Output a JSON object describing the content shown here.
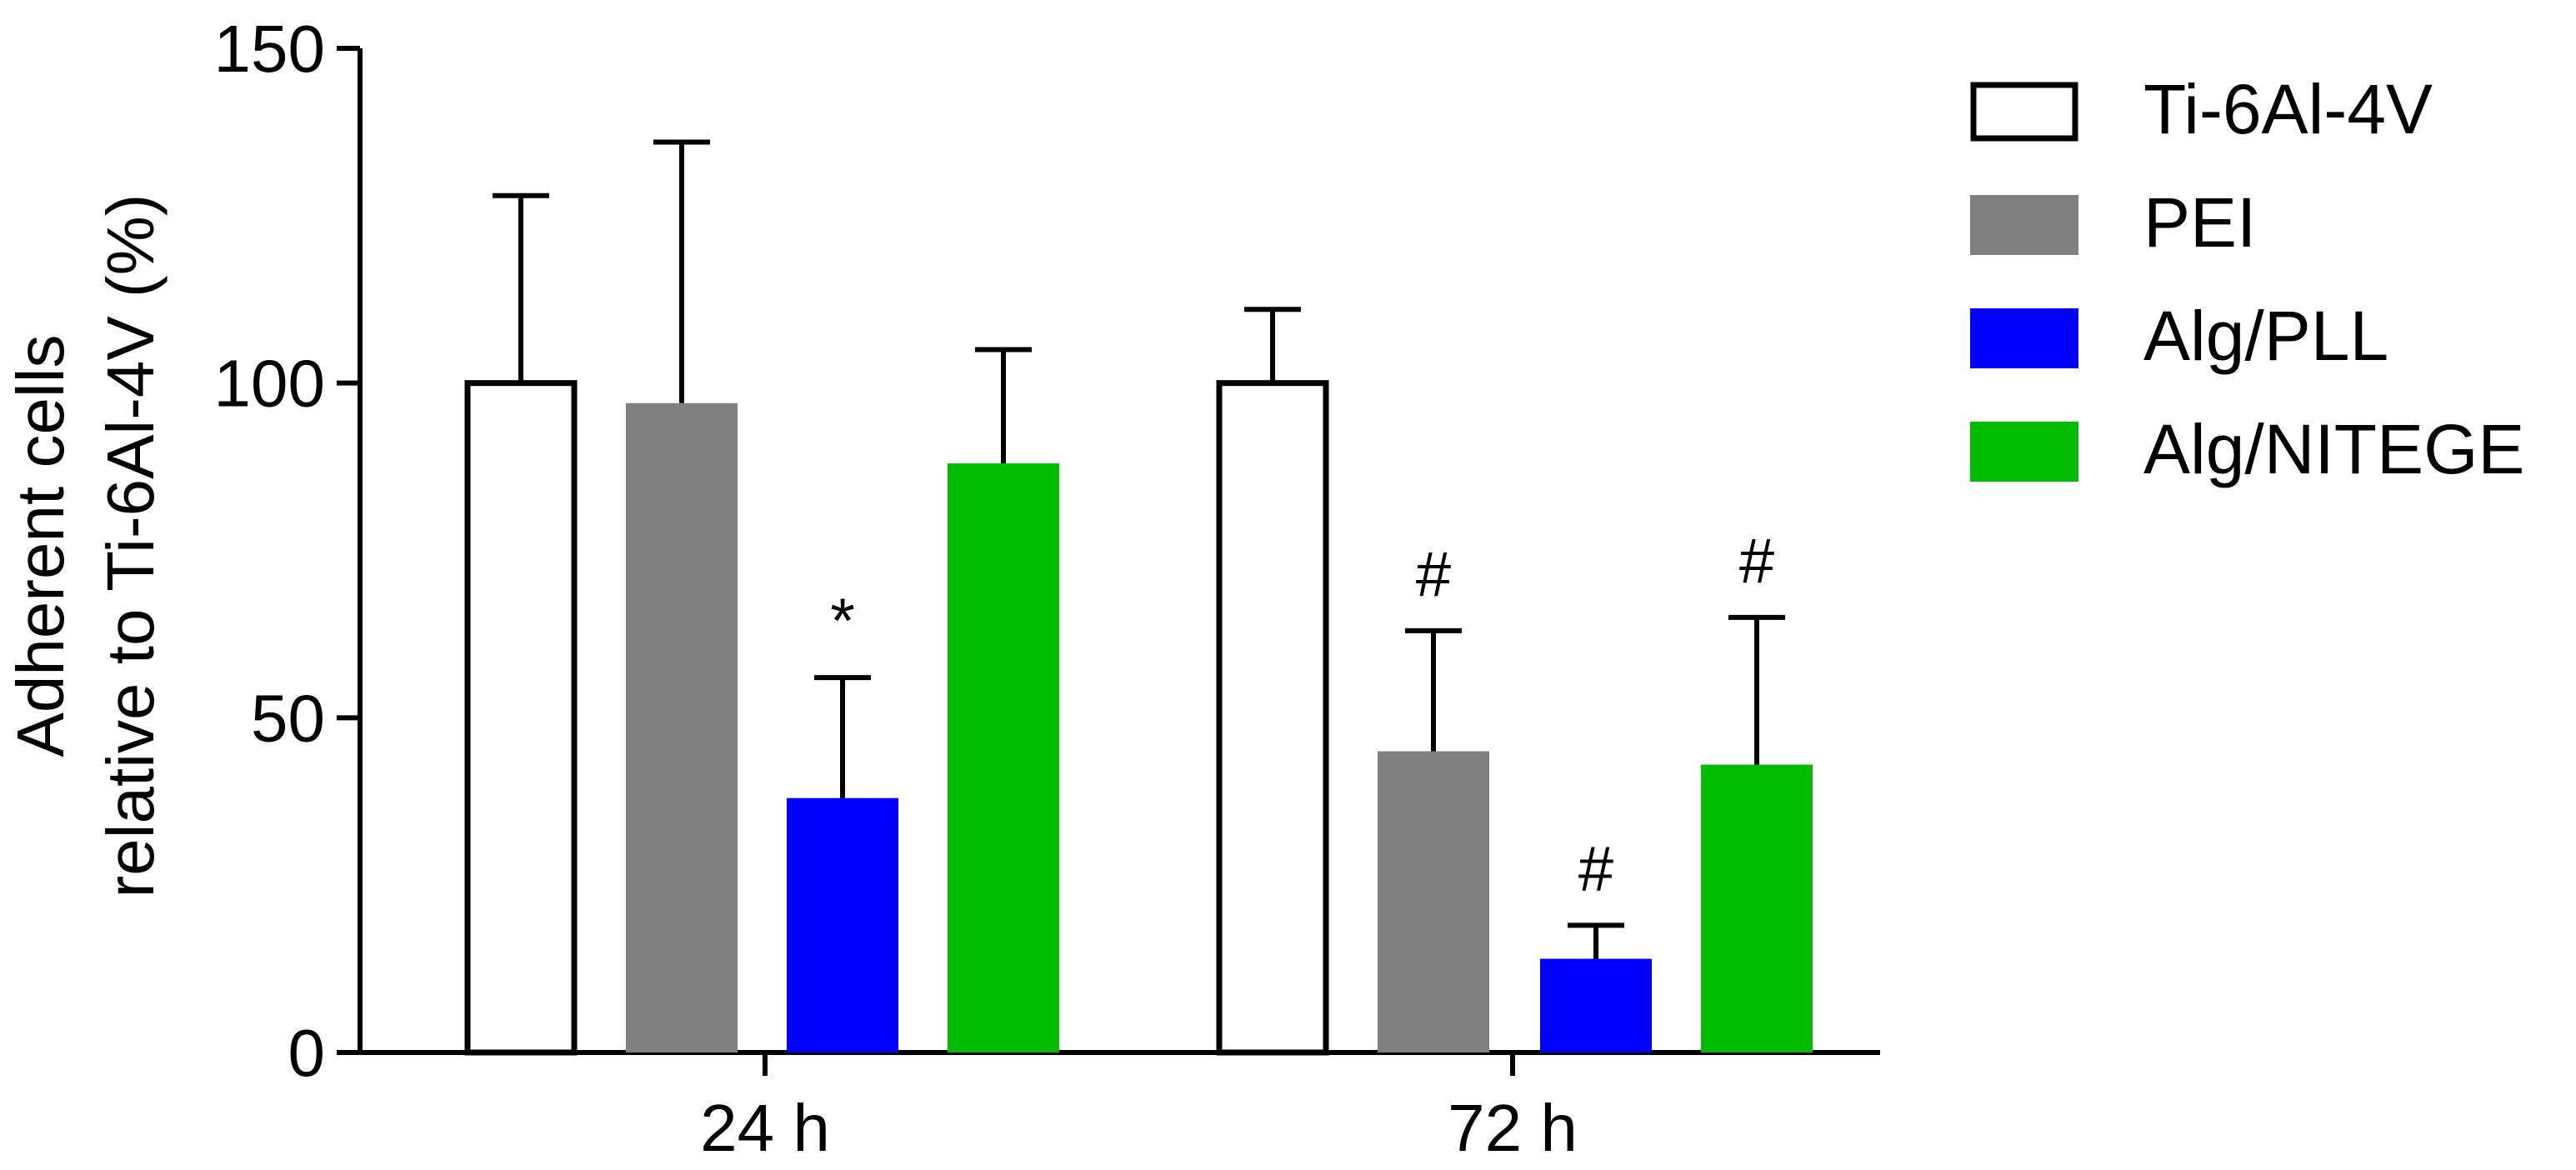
{
  "chart_data": {
    "type": "bar",
    "title": "",
    "xlabel": "",
    "ylabel_lines": [
      "Adherent cells",
      "relative to Ti-6Al-4V (%)"
    ],
    "ylim": [
      0,
      150
    ],
    "yticks": [
      0,
      50,
      100,
      150
    ],
    "categories": [
      "24 h",
      "72 h"
    ],
    "series": [
      {
        "name": "Ti-6Al-4V",
        "color": "#ffffff",
        "stroke": "#000000",
        "values": [
          100,
          100
        ],
        "errors": [
          28,
          11
        ],
        "annotations": [
          "",
          ""
        ]
      },
      {
        "name": "PEI",
        "color": "#808080",
        "stroke": "#808080",
        "values": [
          97,
          45
        ],
        "errors": [
          39,
          18
        ],
        "annotations": [
          "",
          "#"
        ]
      },
      {
        "name": "Alg/PLL",
        "color": "#0000ff",
        "stroke": "#0000ff",
        "values": [
          38,
          14
        ],
        "errors": [
          18,
          5
        ],
        "annotations": [
          "*",
          "#"
        ]
      },
      {
        "name": "Alg/NITEGE",
        "color": "#00bb00",
        "stroke": "#00bb00",
        "values": [
          88,
          43
        ],
        "errors": [
          17,
          22
        ],
        "annotations": [
          "",
          "#"
        ]
      }
    ],
    "legend_position": "right"
  }
}
